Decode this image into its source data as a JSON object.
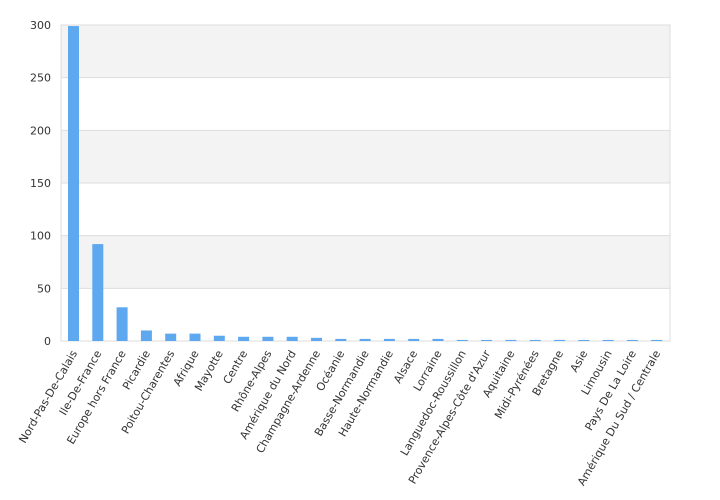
{
  "chart_data": {
    "type": "bar",
    "categories": [
      "Nord-Pas-De-Calais",
      "Ile-De-France",
      "Europe hors France",
      "Picardie",
      "Poitou-Charentes",
      "Afrique",
      "Mayotte",
      "Centre",
      "Rhône-Alpes",
      "Amérique du Nord",
      "Champagne-Ardenne",
      "Océanie",
      "Basse-Normandie",
      "Haute-Normandie",
      "Alsace",
      "Lorraine",
      "Languedoc-Roussillon",
      "Provence-Alpes-Côte d'Azur",
      "Aquitaine",
      "Midi-Pyrénées",
      "Bretagne",
      "Asie",
      "Limousin",
      "Pays De La Loire",
      "Amérique Du Sud / Centrale"
    ],
    "values": [
      299,
      92,
      32,
      10,
      7,
      7,
      5,
      4,
      4,
      4,
      3,
      2,
      2,
      2,
      2,
      2,
      1,
      1,
      1,
      1,
      1,
      1,
      1,
      1,
      1
    ],
    "ylim": [
      0,
      300
    ],
    "yticks": [
      "0",
      "50",
      "100",
      "150",
      "200",
      "250",
      "300"
    ],
    "grid": true,
    "bar_color": "#5ea8f0",
    "band_color": "#f3f3f3",
    "grid_color": "#dddddd"
  }
}
